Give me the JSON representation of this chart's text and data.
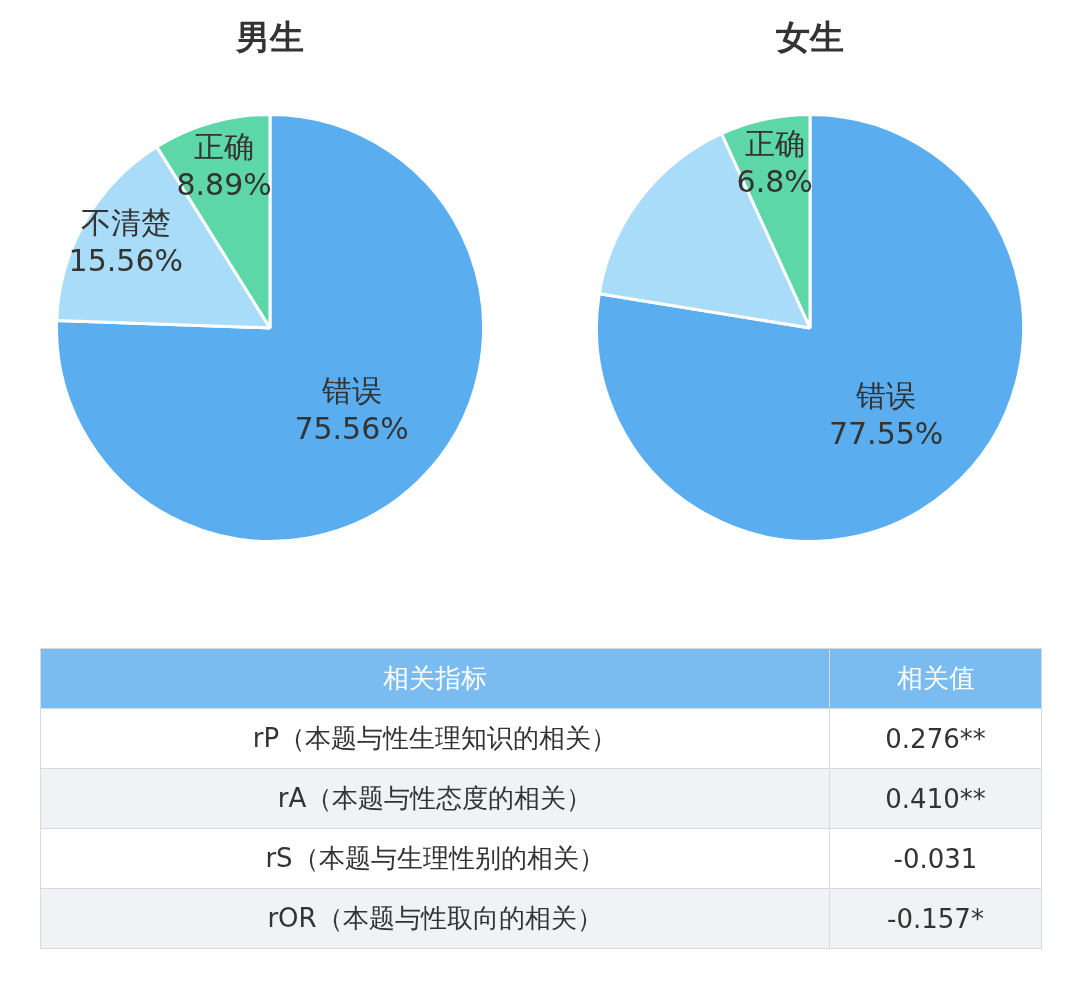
{
  "chart_data": [
    {
      "type": "pie",
      "title": "男生",
      "categories": [
        "错误",
        "不清楚",
        "正确"
      ],
      "values": [
        75.56,
        15.56,
        8.89
      ],
      "colors": [
        "#5aaef0",
        "#a8dcf8",
        "#5dd6a8"
      ],
      "value_labels": [
        "75.56%",
        "15.56%",
        "8.89%"
      ]
    },
    {
      "type": "pie",
      "title": "女生",
      "categories": [
        "错误",
        null,
        "正确"
      ],
      "values": [
        77.55,
        15.65,
        6.8
      ],
      "colors": [
        "#5aaef0",
        "#a8dcf8",
        "#5dd6a8"
      ],
      "value_labels": [
        "77.55%",
        null,
        "6.8%"
      ]
    },
    {
      "type": "other",
      "xlabel": "相关指标",
      "ylabel": "相关值",
      "categories": [
        "rP（本题与性生理知识的相关）",
        "rA（本题与性态度的相关）",
        "rS（本题与生理性别的相关）",
        "rOR（本题与性取向的相关）"
      ],
      "value_labels": [
        "0.276**",
        "0.410**",
        "-0.031",
        "-0.157*"
      ]
    }
  ]
}
